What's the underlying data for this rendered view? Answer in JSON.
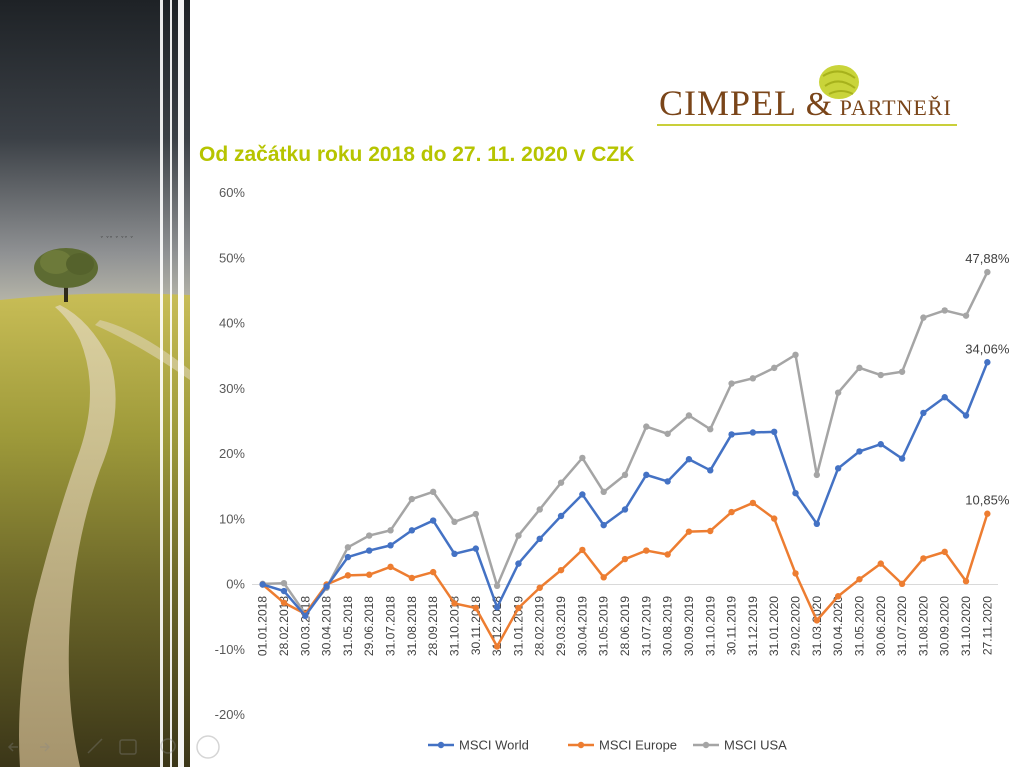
{
  "logo": {
    "part1": "CIMPEL ",
    "amp": "&",
    "part2": " PARTNEŘI"
  },
  "title": "Od začátku roku 2018 do 27. 11. 2020 v CZK",
  "colors": {
    "world": "#4472c4",
    "europe": "#ed7d31",
    "usa": "#a5a5a5",
    "title": "#b6c400",
    "logo": "#7a4519"
  },
  "chart_data": {
    "type": "line",
    "title": "Od začátku roku 2018 do 27. 11. 2020 v CZK",
    "xlabel": "",
    "ylabel": "",
    "ylim": [
      -20,
      60
    ],
    "yticks": [
      "-20%",
      "-10%",
      "0%",
      "10%",
      "20%",
      "30%",
      "40%",
      "50%",
      "60%"
    ],
    "grid": false,
    "legend": "bottom",
    "categories": [
      "01.01.2018",
      "28.02.2018",
      "30.03.2018",
      "30.04.2018",
      "31.05.2018",
      "29.06.2018",
      "31.07.2018",
      "31.08.2018",
      "28.09.2018",
      "31.10.2018",
      "30.11.2018",
      "31.12.2018",
      "31.01.2019",
      "28.02.2019",
      "29.03.2019",
      "30.04.2019",
      "31.05.2019",
      "28.06.2019",
      "31.07.2019",
      "30.08.2019",
      "30.09.2019",
      "31.10.2019",
      "30.11.2019",
      "31.12.2019",
      "31.01.2020",
      "29.02.2020",
      "31.03.2020",
      "30.04.2020",
      "31.05.2020",
      "30.06.2020",
      "31.07.2020",
      "31.08.2020",
      "30.09.2020",
      "31.10.2020",
      "27.11.2020"
    ],
    "series": [
      {
        "name": "MSCI World",
        "values": [
          0,
          -1.0,
          -4.8,
          -0.3,
          4.2,
          5.2,
          6.0,
          8.3,
          9.8,
          4.7,
          5.5,
          -3.5,
          3.2,
          7.0,
          10.5,
          13.8,
          9.1,
          11.5,
          16.8,
          15.8,
          19.2,
          17.5,
          23.0,
          23.3,
          23.4,
          14.0,
          9.3,
          17.8,
          20.4,
          21.5,
          19.3,
          26.3,
          28.7,
          25.9,
          34.06
        ],
        "end_label": "34,06%"
      },
      {
        "name": "MSCI Europe",
        "values": [
          0,
          -2.8,
          -4.5,
          0,
          1.4,
          1.5,
          2.7,
          1.0,
          1.9,
          -2.9,
          -3.6,
          -9.5,
          -3.6,
          -0.5,
          2.2,
          5.3,
          1.1,
          3.9,
          5.2,
          4.6,
          8.1,
          8.2,
          11.1,
          12.5,
          10.1,
          1.7,
          -5.5,
          -1.8,
          0.8,
          3.2,
          0.1,
          4.0,
          5.0,
          0.5,
          10.85
        ],
        "end_label": "10,85%"
      },
      {
        "name": "MSCI USA",
        "values": [
          0.1,
          0.2,
          -4.5,
          -0.5,
          5.7,
          7.5,
          8.3,
          13.1,
          14.2,
          9.6,
          10.8,
          -0.2,
          7.5,
          11.5,
          15.6,
          19.4,
          14.2,
          16.8,
          24.2,
          23.1,
          25.9,
          23.8,
          30.8,
          31.6,
          33.2,
          35.2,
          16.8,
          29.4,
          33.2,
          32.1,
          32.6,
          40.9,
          42.0,
          41.2,
          47.88
        ],
        "end_label": "47,88%"
      }
    ]
  }
}
